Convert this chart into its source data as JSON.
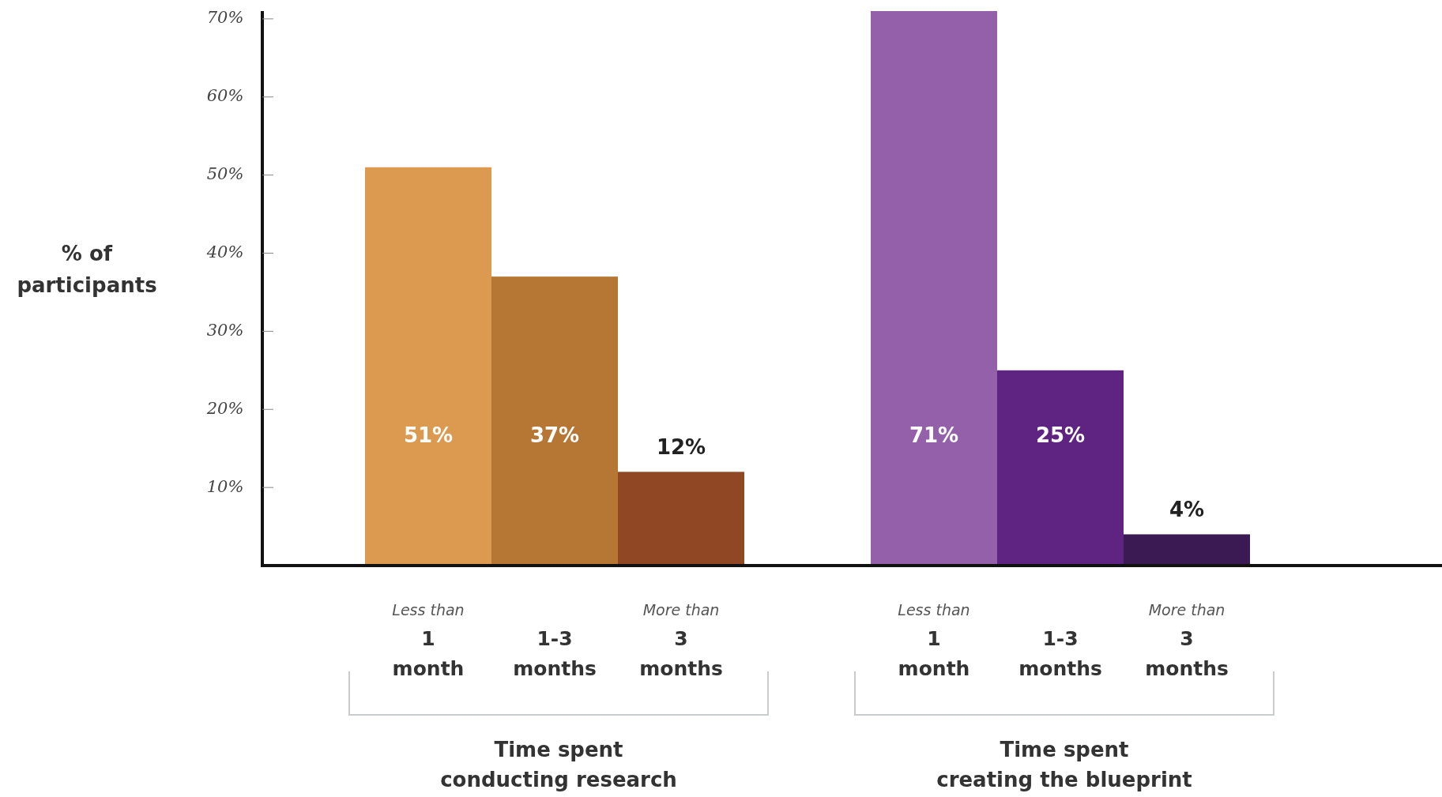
{
  "chart_data": {
    "type": "bar",
    "ylabel": "% of participants",
    "categories": [
      "Less than\n1\nmonth",
      "1-3\nmonths",
      "More than\n3\nmonths",
      null,
      "Less than\n1\nmonth",
      "1-3\nmonths",
      "More than\n3\nmonths"
    ],
    "values": [
      51,
      37,
      12,
      null,
      71,
      25,
      4
    ],
    "colors": [
      "#dc9a50",
      "#b67634",
      "#904824",
      null,
      "#9460a9",
      "#5f2482",
      "#3b1a54"
    ],
    "value_labels": [
      "51%",
      "37%",
      "12%",
      null,
      "71%",
      "25%",
      "4%"
    ],
    "ylim": [
      0,
      71
    ],
    "yticks": [
      {
        "value": 10,
        "label": "10%"
      },
      {
        "value": 20,
        "label": "20%"
      },
      {
        "value": 30,
        "label": "30%"
      },
      {
        "value": 40,
        "label": "40%"
      },
      {
        "value": 50,
        "label": "50%"
      },
      {
        "value": 60,
        "label": "60%"
      },
      {
        "value": 70,
        "label": "70%"
      }
    ],
    "annotations": [
      "Time spent\nconducting research",
      "Time spent\ncreating the blueprint"
    ],
    "grid": false
  }
}
